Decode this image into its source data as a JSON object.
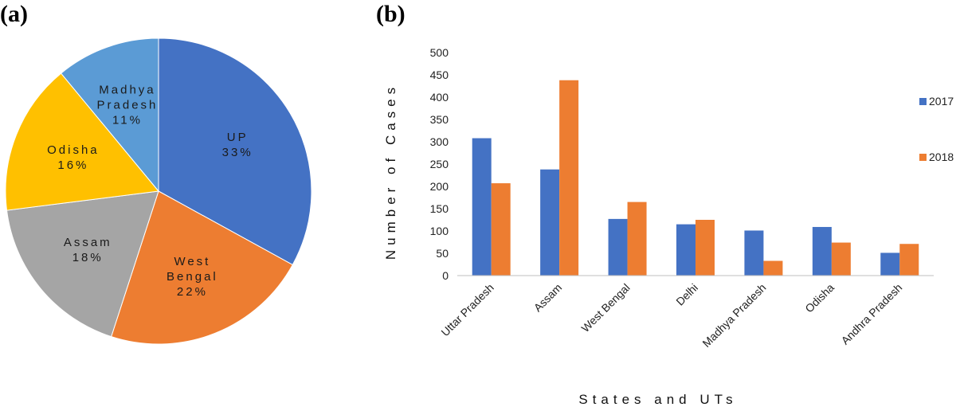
{
  "panels": {
    "a": "(a)",
    "b": "(b)"
  },
  "chart_data": [
    {
      "type": "pie",
      "slices": [
        {
          "label": [
            "UP"
          ],
          "percent_label": "33%",
          "value": 33,
          "color": "#4472C4"
        },
        {
          "label": [
            "West",
            "Bengal"
          ],
          "percent_label": "22%",
          "value": 22,
          "color": "#ED7D31"
        },
        {
          "label": [
            "Assam"
          ],
          "percent_label": "18%",
          "value": 18,
          "color": "#A5A5A5"
        },
        {
          "label": [
            "Odisha"
          ],
          "percent_label": "16%",
          "value": 16,
          "color": "#FFC000"
        },
        {
          "label": [
            "Madhya",
            "Pradesh"
          ],
          "percent_label": "11%",
          "value": 11,
          "color": "#5B9BD5"
        }
      ]
    },
    {
      "type": "bar",
      "categories": [
        "Uttar Pradesh",
        "Assam",
        "West Bengal",
        "Delhi",
        "Madhya Pradesh",
        "Odisha",
        "Andhra Pradesh"
      ],
      "series": [
        {
          "name": "2017",
          "values": [
            308,
            238,
            127,
            115,
            101,
            109,
            51
          ],
          "color": "#4472C4"
        },
        {
          "name": "2018",
          "values": [
            207,
            438,
            165,
            125,
            33,
            74,
            71
          ],
          "color": "#ED7D31"
        }
      ],
      "xlabel": "States and UTs",
      "ylabel": "Number of Cases",
      "ylim": [
        0,
        500
      ],
      "yticks": [
        0,
        50,
        100,
        150,
        200,
        250,
        300,
        350,
        400,
        450,
        500
      ],
      "legend": "right",
      "grid": false
    }
  ]
}
